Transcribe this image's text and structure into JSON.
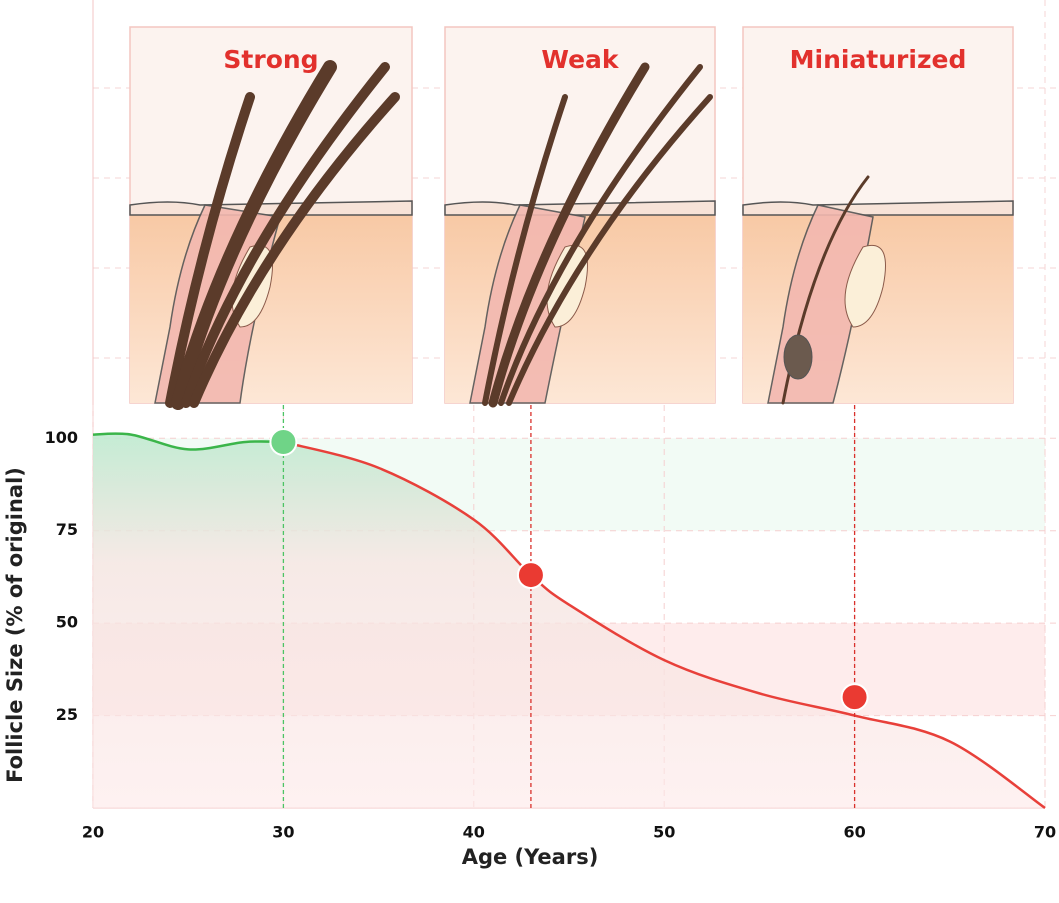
{
  "chart_data": {
    "type": "line",
    "xlabel": "Age (Years)",
    "ylabel": "Follicle Size (% of original)",
    "xlim": [
      20,
      70
    ],
    "ylim": [
      0,
      109
    ],
    "xticks": [
      20,
      30,
      40,
      50,
      60,
      70
    ],
    "yticks": [
      25,
      50,
      75,
      100
    ],
    "grid": true,
    "series": [
      {
        "color": "#3bb54a",
        "x": [
          20,
          22,
          25,
          28,
          30
        ],
        "values": [
          101,
          101,
          97,
          99,
          99
        ]
      },
      {
        "color": "#e8403a",
        "x": [
          30,
          35,
          40,
          43,
          45,
          50,
          55,
          60,
          65,
          70
        ],
        "values": [
          99,
          92,
          78,
          63,
          55,
          40,
          31,
          25,
          18,
          0
        ]
      }
    ],
    "annotations": [
      {
        "label": "Strong",
        "x": 30,
        "y": 99,
        "color": "#6fd487"
      },
      {
        "label": "Weak",
        "x": 43,
        "y": 63,
        "color": "#ea3a32"
      },
      {
        "label": "Miniaturized",
        "x": 60,
        "y": 30,
        "color": "#ea3a32"
      }
    ]
  }
}
